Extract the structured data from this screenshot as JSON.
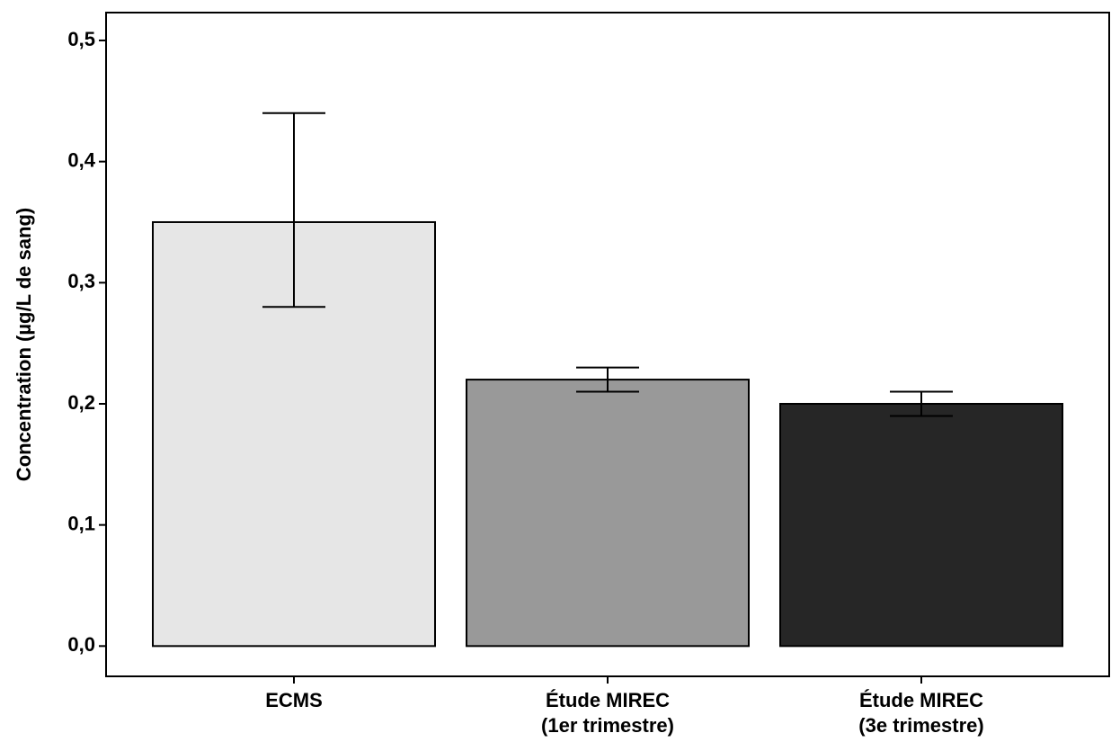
{
  "chart_data": {
    "type": "bar",
    "y_label": "Concentration (µg/L de sang)",
    "categories": [
      "ECMS",
      "Étude MIREC\n(1er trimestre)",
      "Étude MIREC\n(3e trimestre)"
    ],
    "values": [
      0.35,
      0.22,
      0.2
    ],
    "ci_lower": [
      0.28,
      0.21,
      0.19
    ],
    "ci_upper": [
      0.44,
      0.23,
      0.21
    ],
    "colors": [
      "#e6e6e6",
      "#999999",
      "#262626"
    ],
    "ylim": [
      -0.025,
      0.523
    ],
    "yticks": [
      {
        "value": 0,
        "label": "0,0"
      },
      {
        "value": 0.1,
        "label": "0,1"
      },
      {
        "value": 0.2,
        "label": "0,2"
      },
      {
        "value": 0.3,
        "label": "0,3"
      },
      {
        "value": 0.4,
        "label": "0,4"
      },
      {
        "value": 0.5,
        "label": "0,5"
      }
    ],
    "grid": false
  }
}
